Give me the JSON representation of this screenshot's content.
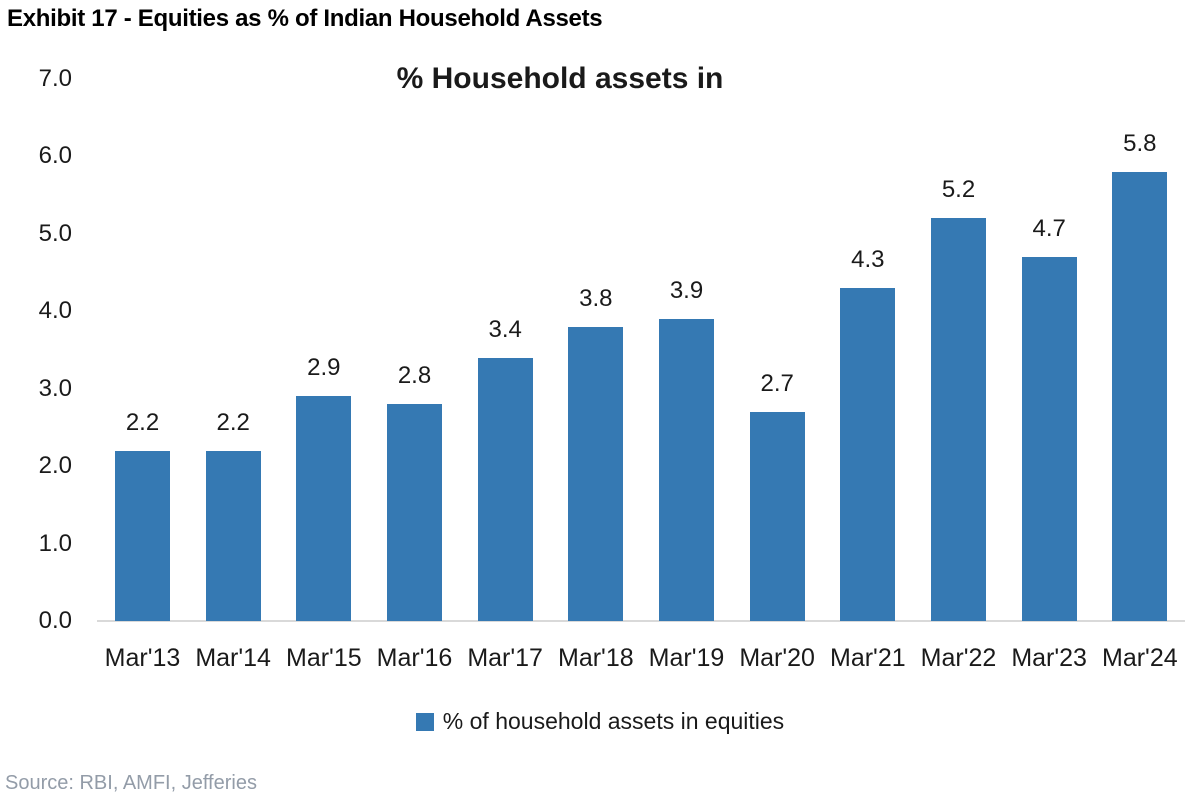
{
  "page": {
    "exhibit_title": "Exhibit 17 - Equities as % of Indian Household Assets",
    "source": "Source: RBI, AMFI, Jefferies"
  },
  "chart_data": {
    "type": "bar",
    "title": "% Household assets in",
    "categories": [
      "Mar'13",
      "Mar'14",
      "Mar'15",
      "Mar'16",
      "Mar'17",
      "Mar'18",
      "Mar'19",
      "Mar'20",
      "Mar'21",
      "Mar'22",
      "Mar'23",
      "Mar'24"
    ],
    "values": [
      2.2,
      2.2,
      2.9,
      2.8,
      3.4,
      3.8,
      3.9,
      2.7,
      4.3,
      5.2,
      4.7,
      5.8
    ],
    "value_labels": [
      "2.2",
      "2.2",
      "2.9",
      "2.8",
      "3.4",
      "3.8",
      "3.9",
      "2.7",
      "4.3",
      "5.2",
      "4.7",
      "5.8"
    ],
    "xlabel": "",
    "ylabel": "",
    "ylim": [
      0,
      7
    ],
    "yticks": [
      0,
      1,
      2,
      3,
      4,
      5,
      6,
      7
    ],
    "ytick_labels": [
      "0.0",
      "1.0",
      "2.0",
      "3.0",
      "4.0",
      "5.0",
      "6.0",
      "7.0"
    ],
    "grid": false,
    "legend": {
      "position": "bottom",
      "label": "% of household assets in equities"
    }
  },
  "colors": {
    "bar": "#3579B3",
    "text": "#1a1a1a",
    "axis_line": "#d9d9d9",
    "source_text": "#939CA8"
  }
}
